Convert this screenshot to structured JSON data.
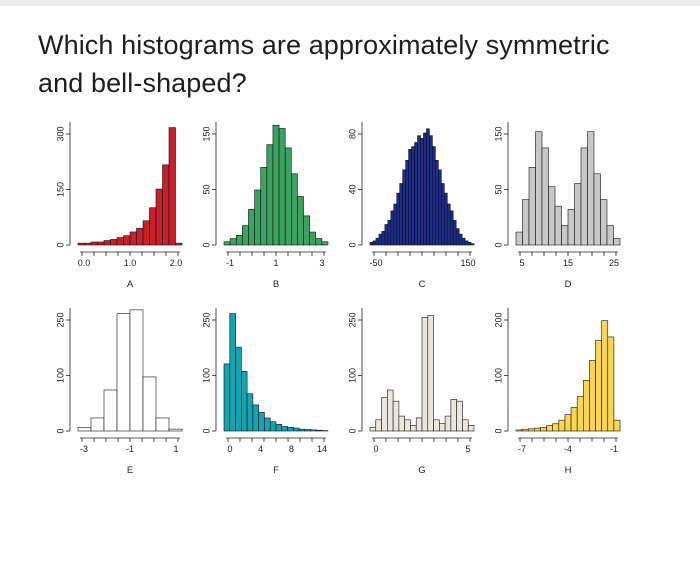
{
  "question": {
    "line1": "Which histograms are approximately symmetric",
    "line2": "and bell-shaped?"
  },
  "colors": {
    "A": "#c8202a",
    "B": "#3aa360",
    "C": "#1d2c8c",
    "D": "#c8c8c8",
    "E": "#ffffff",
    "F": "#14a3b0",
    "G": "#ede6dc",
    "H": "#f6d653"
  },
  "chart_data": [
    {
      "type": "bar",
      "label": "A",
      "xticks": [
        "0.0",
        "1.0",
        "2.0"
      ],
      "yticks": [
        "0",
        "150",
        "300"
      ],
      "ylim": [
        0,
        330
      ],
      "values": [
        5,
        5,
        8,
        8,
        12,
        15,
        20,
        25,
        35,
        45,
        65,
        100,
        150,
        215,
        315,
        5
      ]
    },
    {
      "type": "bar",
      "label": "B",
      "xticks": [
        "-1",
        "1",
        "3"
      ],
      "yticks": [
        "0",
        "50",
        "150"
      ],
      "ylim": [
        0,
        190
      ],
      "values": [
        5,
        10,
        15,
        30,
        55,
        85,
        120,
        155,
        185,
        180,
        150,
        110,
        75,
        45,
        20,
        10,
        5
      ]
    },
    {
      "type": "bar",
      "label": "C",
      "xticks": [
        "-50",
        "150"
      ],
      "yticks": [
        "0",
        "40",
        "80"
      ],
      "ylim": [
        0,
        90
      ],
      "values": [
        2,
        3,
        5,
        8,
        10,
        15,
        18,
        25,
        30,
        38,
        45,
        55,
        62,
        70,
        72,
        75,
        80,
        78,
        82,
        85,
        80,
        72,
        62,
        55,
        45,
        38,
        30,
        25,
        18,
        12,
        8,
        5,
        3,
        2,
        1
      ]
    },
    {
      "type": "bar",
      "label": "D",
      "xticks": [
        "5",
        "15",
        "25"
      ],
      "yticks": [
        "0",
        "50",
        "150"
      ],
      "ylim": [
        0,
        190
      ],
      "values": [
        20,
        70,
        120,
        175,
        150,
        90,
        60,
        30,
        55,
        95,
        150,
        175,
        110,
        70,
        30,
        10
      ]
    },
    {
      "type": "bar",
      "label": "E",
      "xticks": [
        "-3",
        "-1",
        "1"
      ],
      "yticks": [
        "0",
        "100",
        "250"
      ],
      "ylim": [
        0,
        330
      ],
      "values": [
        10,
        35,
        110,
        315,
        325,
        145,
        35,
        5
      ]
    },
    {
      "type": "bar",
      "label": "F",
      "xticks": [
        "0",
        "4",
        "8",
        "14"
      ],
      "yticks": [
        "0",
        "100",
        "250"
      ],
      "ylim": [
        0,
        330
      ],
      "values": [
        180,
        315,
        225,
        160,
        100,
        70,
        50,
        35,
        25,
        18,
        12,
        10,
        8,
        5,
        4,
        3,
        2,
        1
      ]
    },
    {
      "type": "bar",
      "label": "G",
      "xticks": [
        "0",
        "5"
      ],
      "yticks": [
        "0",
        "100",
        "250"
      ],
      "ylim": [
        0,
        330
      ],
      "values": [
        10,
        30,
        90,
        110,
        80,
        40,
        30,
        15,
        35,
        305,
        310,
        30,
        20,
        40,
        85,
        80,
        30,
        15
      ]
    },
    {
      "type": "bar",
      "label": "H",
      "xticks": [
        "-7",
        "-4",
        "-1"
      ],
      "yticks": [
        "0",
        "100",
        "200"
      ],
      "ylim": [
        0,
        340
      ],
      "values": [
        3,
        5,
        6,
        8,
        10,
        15,
        20,
        30,
        45,
        65,
        95,
        140,
        195,
        250,
        305,
        260,
        30
      ]
    }
  ]
}
